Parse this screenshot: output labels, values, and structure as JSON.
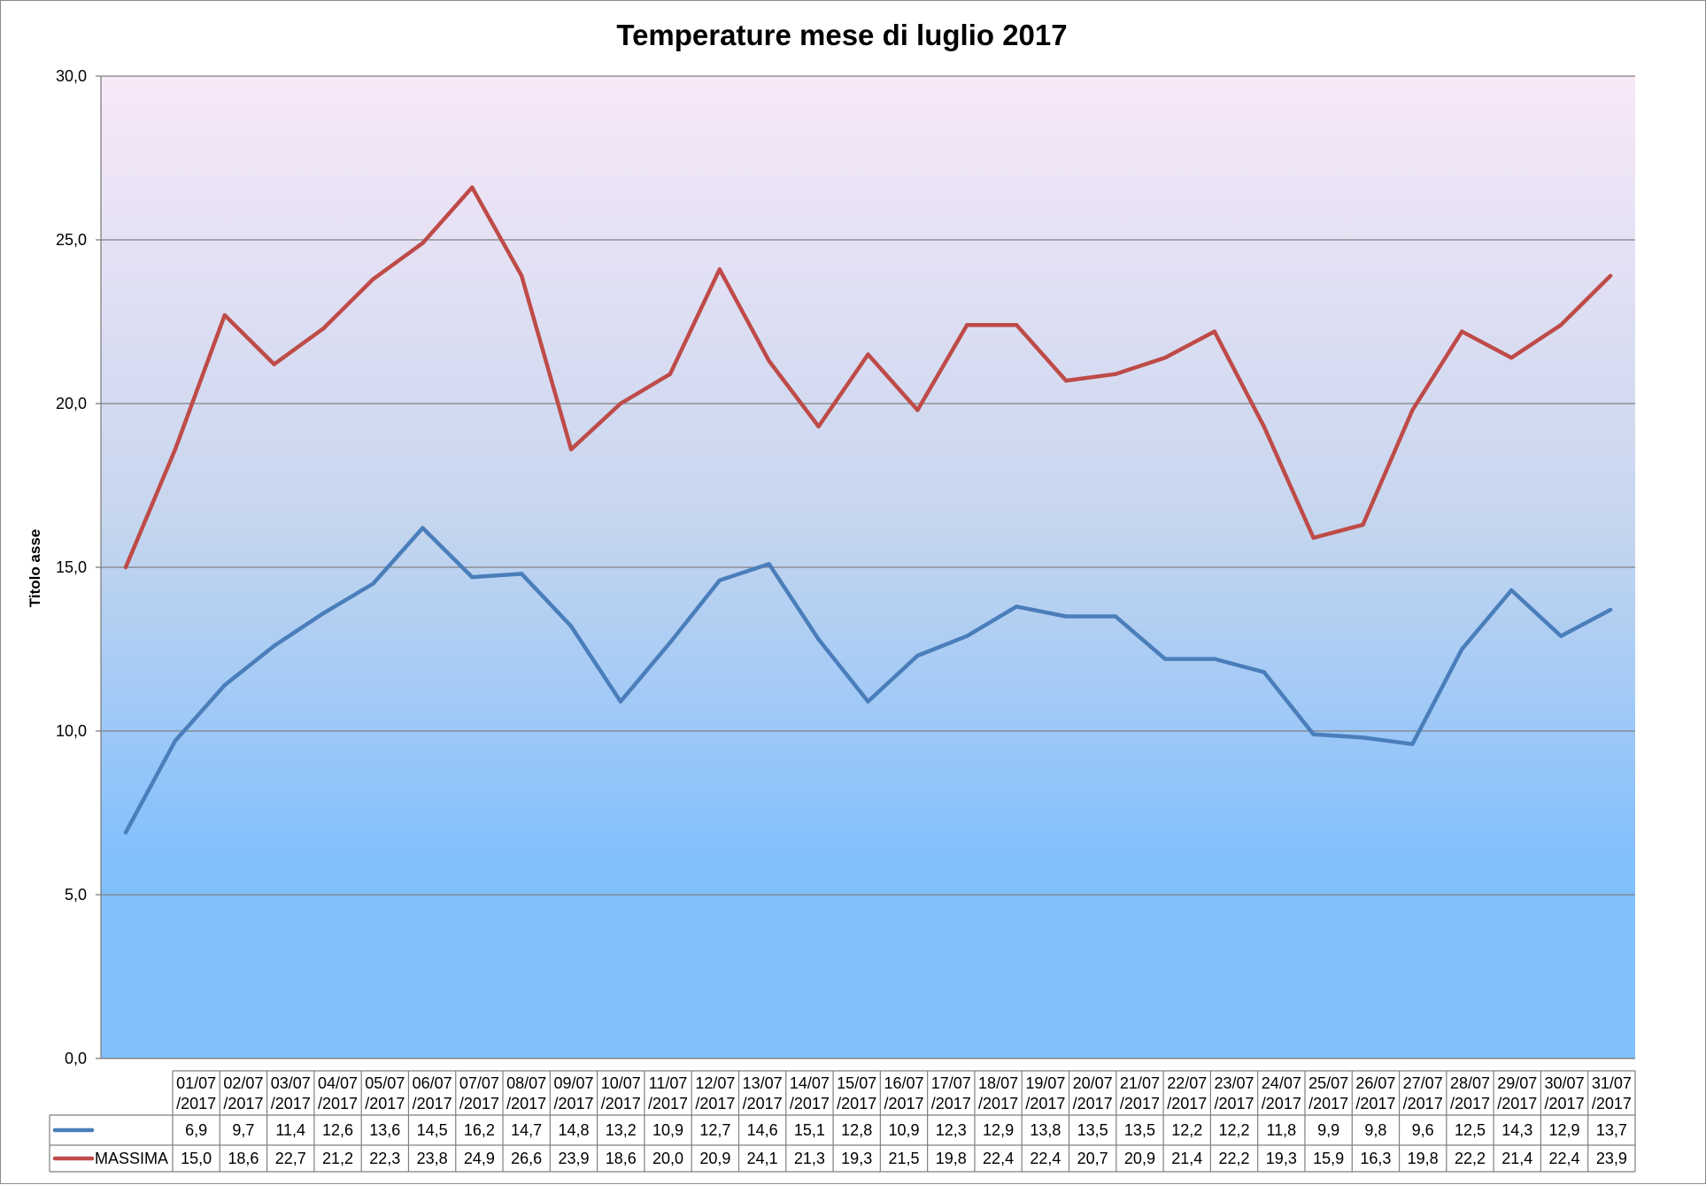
{
  "colors": {
    "series_min": "#4a7ebb",
    "series_max": "#be4b48",
    "plot_bg_top": "#f8e8f8",
    "plot_bg_mid": "#c6d6ee",
    "plot_bg_bottom": "#82bffd",
    "gridline": "#808080"
  },
  "chart_data": {
    "type": "line",
    "title": "Temperature mese di luglio 2017",
    "ylabel": "Titolo asse",
    "xlabel": "",
    "ylim": [
      0,
      30
    ],
    "yticks": [
      "0,0",
      "5,0",
      "10,0",
      "15,0",
      "20,0",
      "25,0",
      "30,0"
    ],
    "grid": true,
    "legend": "data-table",
    "categories": [
      "01/07/2017",
      "02/07/2017",
      "03/07/2017",
      "04/07/2017",
      "05/07/2017",
      "06/07/2017",
      "07/07/2017",
      "08/07/2017",
      "09/07/2017",
      "10/07/2017",
      "11/07/2017",
      "12/07/2017",
      "13/07/2017",
      "14/07/2017",
      "15/07/2017",
      "16/07/2017",
      "17/07/2017",
      "18/07/2017",
      "19/07/2017",
      "20/07/2017",
      "21/07/2017",
      "22/07/2017",
      "23/07/2017",
      "24/07/2017",
      "25/07/2017",
      "26/07/2017",
      "27/07/2017",
      "28/07/2017",
      "29/07/2017",
      "30/07/2017",
      "31/07/2017"
    ],
    "series": [
      {
        "name": "",
        "color": "#4a7ebb",
        "values": [
          6.9,
          9.7,
          11.4,
          12.6,
          13.6,
          14.5,
          16.2,
          14.7,
          14.8,
          13.2,
          10.9,
          12.7,
          14.6,
          15.1,
          12.8,
          10.9,
          12.3,
          12.9,
          13.8,
          13.5,
          13.5,
          12.2,
          12.2,
          11.8,
          9.9,
          9.8,
          9.6,
          12.5,
          14.3,
          12.9,
          13.7
        ],
        "labels": [
          "6,9",
          "9,7",
          "11,4",
          "12,6",
          "13,6",
          "14,5",
          "16,2",
          "14,7",
          "14,8",
          "13,2",
          "10,9",
          "12,7",
          "14,6",
          "15,1",
          "12,8",
          "10,9",
          "12,3",
          "12,9",
          "13,8",
          "13,5",
          "13,5",
          "12,2",
          "12,2",
          "11,8",
          "9,9",
          "9,8",
          "9,6",
          "12,5",
          "14,3",
          "12,9",
          "13,7"
        ]
      },
      {
        "name": "MASSIMA",
        "color": "#be4b48",
        "values": [
          15.0,
          18.6,
          22.7,
          21.2,
          22.3,
          23.8,
          24.9,
          26.6,
          23.9,
          18.6,
          20.0,
          20.9,
          24.1,
          21.3,
          19.3,
          21.5,
          19.8,
          22.4,
          22.4,
          20.7,
          20.9,
          21.4,
          22.2,
          19.3,
          15.9,
          16.3,
          19.8,
          22.2,
          21.4,
          22.4,
          23.9
        ],
        "labels": [
          "15,0",
          "18,6",
          "22,7",
          "21,2",
          "22,3",
          "23,8",
          "24,9",
          "26,6",
          "23,9",
          "18,6",
          "20,0",
          "20,9",
          "24,1",
          "21,3",
          "19,3",
          "21,5",
          "19,8",
          "22,4",
          "22,4",
          "20,7",
          "20,9",
          "21,4",
          "22,2",
          "19,3",
          "15,9",
          "16,3",
          "19,8",
          "22,2",
          "21,4",
          "22,4",
          "23,9"
        ]
      }
    ]
  }
}
